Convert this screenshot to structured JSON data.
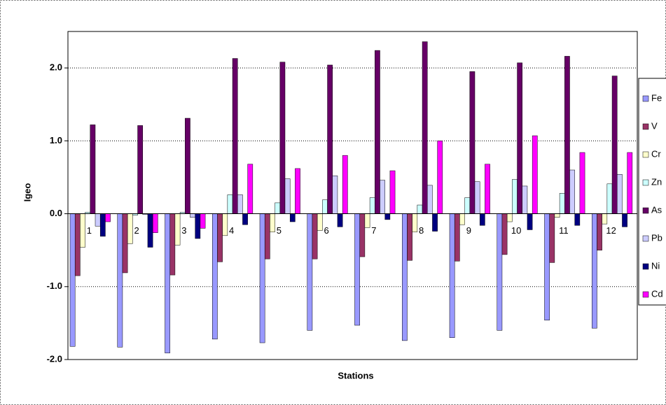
{
  "chart_data": {
    "type": "bar",
    "x_label": "Stations",
    "y_label": "Igeo",
    "categories": [
      "1",
      "2",
      "3",
      "4",
      "5",
      "6",
      "7",
      "8",
      "9",
      "10",
      "11",
      "12"
    ],
    "ylim": [
      -2.0,
      2.5
    ],
    "yticks": [
      {
        "value": 2.0,
        "label": "2.0"
      },
      {
        "value": 1.0,
        "label": "1.0"
      },
      {
        "value": 0.0,
        "label": "0.0"
      },
      {
        "value": -1.0,
        "label": "-1.0"
      },
      {
        "value": -2.0,
        "label": "-2.0"
      }
    ],
    "grid": true,
    "legend": "right",
    "series": [
      {
        "name": "Fe",
        "color": "#9999ff",
        "values": [
          -1.82,
          -1.83,
          -1.91,
          -1.72,
          -1.77,
          -1.6,
          -1.53,
          -1.74,
          -1.7,
          -1.6,
          -1.46,
          -1.57
        ]
      },
      {
        "name": "V",
        "color": "#993366",
        "values": [
          -0.85,
          -0.81,
          -0.84,
          -0.66,
          -0.62,
          -0.62,
          -0.59,
          -0.64,
          -0.65,
          -0.56,
          -0.67,
          -0.5
        ]
      },
      {
        "name": "Cr",
        "color": "#ffffcc",
        "values": [
          -0.46,
          -0.41,
          -0.43,
          -0.3,
          -0.25,
          -0.23,
          -0.19,
          -0.25,
          -0.15,
          -0.11,
          -0.05,
          -0.14
        ]
      },
      {
        "name": "Zn",
        "color": "#ccffff",
        "values": [
          0.02,
          -0.02,
          0.02,
          0.26,
          0.15,
          0.19,
          0.22,
          0.12,
          0.22,
          0.47,
          0.28,
          0.41
        ]
      },
      {
        "name": "As",
        "color": "#660066",
        "values": [
          1.22,
          1.21,
          1.31,
          2.13,
          2.08,
          2.04,
          2.24,
          2.36,
          1.95,
          2.07,
          2.16,
          1.89
        ]
      },
      {
        "name": "Pb",
        "color": "#ccccff",
        "values": [
          -0.17,
          -0.01,
          -0.05,
          0.26,
          0.48,
          0.52,
          0.46,
          0.39,
          0.44,
          0.38,
          0.6,
          0.54
        ]
      },
      {
        "name": "Ni",
        "color": "#000080",
        "values": [
          -0.31,
          -0.46,
          -0.34,
          -0.15,
          -0.11,
          -0.18,
          -0.08,
          -0.24,
          -0.16,
          -0.22,
          -0.16,
          -0.18
        ]
      },
      {
        "name": "Cd",
        "color": "#ff00ff",
        "values": [
          -0.11,
          -0.26,
          -0.2,
          0.68,
          0.62,
          0.8,
          0.59,
          1.0,
          0.68,
          1.07,
          0.84,
          0.84
        ]
      }
    ]
  }
}
